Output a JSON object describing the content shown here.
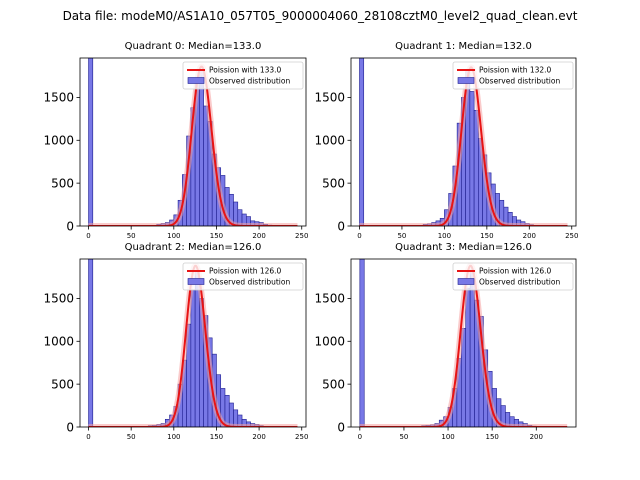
{
  "figure_title": "Data file: modeM0/AS1A10_057T05_9000004060_28108cztM0_level2_quad_clean.evt",
  "colors": {
    "bar_fill": "#7878e6",
    "bar_edge": "#1f1f8f",
    "poisson_line": "#e81414",
    "peak_glow": "#f5a0a0"
  },
  "chart_data": [
    {
      "type": "bar",
      "title": "Quadrant 0: Median=133.0",
      "legend": {
        "poisson": "Poission with 133.0",
        "observed": "Observed distribution",
        "placement": "top-right"
      },
      "xlim": [
        -10,
        255
      ],
      "ylim": [
        0,
        1960
      ],
      "xticks": [
        0,
        50,
        100,
        150,
        200,
        250
      ],
      "yticks": [
        0,
        500,
        1000,
        1500
      ],
      "bin_width": 5,
      "bins": [
        {
          "x": 0,
          "y": 1960
        },
        {
          "x": 80,
          "y": 20
        },
        {
          "x": 85,
          "y": 30
        },
        {
          "x": 90,
          "y": 40
        },
        {
          "x": 95,
          "y": 70
        },
        {
          "x": 100,
          "y": 130
        },
        {
          "x": 105,
          "y": 300
        },
        {
          "x": 110,
          "y": 600
        },
        {
          "x": 115,
          "y": 1050
        },
        {
          "x": 120,
          "y": 1380
        },
        {
          "x": 125,
          "y": 1700
        },
        {
          "x": 130,
          "y": 1830
        },
        {
          "x": 135,
          "y": 1400
        },
        {
          "x": 140,
          "y": 1220
        },
        {
          "x": 145,
          "y": 840
        },
        {
          "x": 150,
          "y": 680
        },
        {
          "x": 155,
          "y": 590
        },
        {
          "x": 160,
          "y": 450
        },
        {
          "x": 165,
          "y": 370
        },
        {
          "x": 170,
          "y": 280
        },
        {
          "x": 175,
          "y": 190
        },
        {
          "x": 180,
          "y": 140
        },
        {
          "x": 185,
          "y": 110
        },
        {
          "x": 190,
          "y": 60
        },
        {
          "x": 195,
          "y": 50
        },
        {
          "x": 200,
          "y": 40
        },
        {
          "x": 205,
          "y": 20
        },
        {
          "x": 210,
          "y": 10
        }
      ],
      "poisson": {
        "mean": 133.0,
        "x_range": [
          0,
          245
        ],
        "scale": 1860
      }
    },
    {
      "type": "bar",
      "title": "Quadrant 1: Median=132.0",
      "legend": {
        "poisson": "Poission with 132.0",
        "observed": "Observed distribution",
        "placement": "top-right"
      },
      "xlim": [
        -10,
        255
      ],
      "ylim": [
        0,
        1960
      ],
      "xticks": [
        0,
        50,
        100,
        150,
        200,
        250
      ],
      "yticks": [
        0,
        500,
        1000,
        1500
      ],
      "bin_width": 5,
      "bins": [
        {
          "x": 0,
          "y": 1960
        },
        {
          "x": 75,
          "y": 20
        },
        {
          "x": 80,
          "y": 25
        },
        {
          "x": 85,
          "y": 40
        },
        {
          "x": 90,
          "y": 60
        },
        {
          "x": 95,
          "y": 90
        },
        {
          "x": 100,
          "y": 190
        },
        {
          "x": 105,
          "y": 380
        },
        {
          "x": 110,
          "y": 700
        },
        {
          "x": 115,
          "y": 1200
        },
        {
          "x": 120,
          "y": 1500
        },
        {
          "x": 125,
          "y": 1800
        },
        {
          "x": 130,
          "y": 1570
        },
        {
          "x": 135,
          "y": 1350
        },
        {
          "x": 140,
          "y": 1020
        },
        {
          "x": 145,
          "y": 830
        },
        {
          "x": 150,
          "y": 620
        },
        {
          "x": 155,
          "y": 490
        },
        {
          "x": 160,
          "y": 380
        },
        {
          "x": 165,
          "y": 300
        },
        {
          "x": 170,
          "y": 220
        },
        {
          "x": 175,
          "y": 160
        },
        {
          "x": 180,
          "y": 110
        },
        {
          "x": 185,
          "y": 70
        },
        {
          "x": 190,
          "y": 50
        },
        {
          "x": 195,
          "y": 30
        },
        {
          "x": 200,
          "y": 15
        }
      ],
      "poisson": {
        "mean": 132.0,
        "x_range": [
          0,
          245
        ],
        "scale": 1850
      }
    },
    {
      "type": "bar",
      "title": "Quadrant 2: Median=126.0",
      "legend": {
        "poisson": "Poission with 126.0",
        "observed": "Observed distribution",
        "placement": "top-right"
      },
      "xlim": [
        -10,
        255
      ],
      "ylim": [
        0,
        1960
      ],
      "xticks": [
        0,
        50,
        100,
        150,
        200,
        250
      ],
      "yticks": [
        0,
        500,
        1000,
        1500
      ],
      "bin_width": 5,
      "bins": [
        {
          "x": 0,
          "y": 1960
        },
        {
          "x": 70,
          "y": 15
        },
        {
          "x": 75,
          "y": 20
        },
        {
          "x": 80,
          "y": 30
        },
        {
          "x": 85,
          "y": 40
        },
        {
          "x": 90,
          "y": 90
        },
        {
          "x": 95,
          "y": 140
        },
        {
          "x": 100,
          "y": 240
        },
        {
          "x": 105,
          "y": 500
        },
        {
          "x": 110,
          "y": 780
        },
        {
          "x": 115,
          "y": 1200
        },
        {
          "x": 120,
          "y": 1600
        },
        {
          "x": 125,
          "y": 1820
        },
        {
          "x": 130,
          "y": 1500
        },
        {
          "x": 135,
          "y": 1300
        },
        {
          "x": 140,
          "y": 1040
        },
        {
          "x": 145,
          "y": 850
        },
        {
          "x": 150,
          "y": 610
        },
        {
          "x": 155,
          "y": 450
        },
        {
          "x": 160,
          "y": 370
        },
        {
          "x": 165,
          "y": 280
        },
        {
          "x": 170,
          "y": 200
        },
        {
          "x": 175,
          "y": 140
        },
        {
          "x": 180,
          "y": 90
        },
        {
          "x": 185,
          "y": 60
        },
        {
          "x": 190,
          "y": 40
        },
        {
          "x": 195,
          "y": 30
        },
        {
          "x": 200,
          "y": 15
        }
      ],
      "poisson": {
        "mean": 126.0,
        "x_range": [
          0,
          245
        ],
        "scale": 1880
      }
    },
    {
      "type": "bar",
      "title": "Quadrant 3: Median=126.0",
      "legend": {
        "poisson": "Poission with 126.0",
        "observed": "Observed distribution",
        "placement": "top-right"
      },
      "xlim": [
        -10,
        245
      ],
      "ylim": [
        0,
        1960
      ],
      "xticks": [
        0,
        50,
        100,
        150,
        200
      ],
      "yticks": [
        0,
        500,
        1000,
        1500
      ],
      "bin_width": 5,
      "bins": [
        {
          "x": 0,
          "y": 1960
        },
        {
          "x": 70,
          "y": 15
        },
        {
          "x": 75,
          "y": 20
        },
        {
          "x": 80,
          "y": 25
        },
        {
          "x": 85,
          "y": 40
        },
        {
          "x": 90,
          "y": 80
        },
        {
          "x": 95,
          "y": 120
        },
        {
          "x": 100,
          "y": 230
        },
        {
          "x": 105,
          "y": 450
        },
        {
          "x": 110,
          "y": 800
        },
        {
          "x": 115,
          "y": 1150
        },
        {
          "x": 120,
          "y": 1620
        },
        {
          "x": 125,
          "y": 1830
        },
        {
          "x": 130,
          "y": 1480
        },
        {
          "x": 135,
          "y": 1290
        },
        {
          "x": 140,
          "y": 900
        },
        {
          "x": 145,
          "y": 650
        },
        {
          "x": 150,
          "y": 450
        },
        {
          "x": 155,
          "y": 330
        },
        {
          "x": 160,
          "y": 250
        },
        {
          "x": 165,
          "y": 170
        },
        {
          "x": 170,
          "y": 120
        },
        {
          "x": 175,
          "y": 90
        },
        {
          "x": 180,
          "y": 60
        },
        {
          "x": 185,
          "y": 40
        },
        {
          "x": 190,
          "y": 20
        },
        {
          "x": 195,
          "y": 10
        }
      ],
      "poisson": {
        "mean": 126.0,
        "x_range": [
          0,
          235
        ],
        "scale": 1880
      }
    }
  ]
}
